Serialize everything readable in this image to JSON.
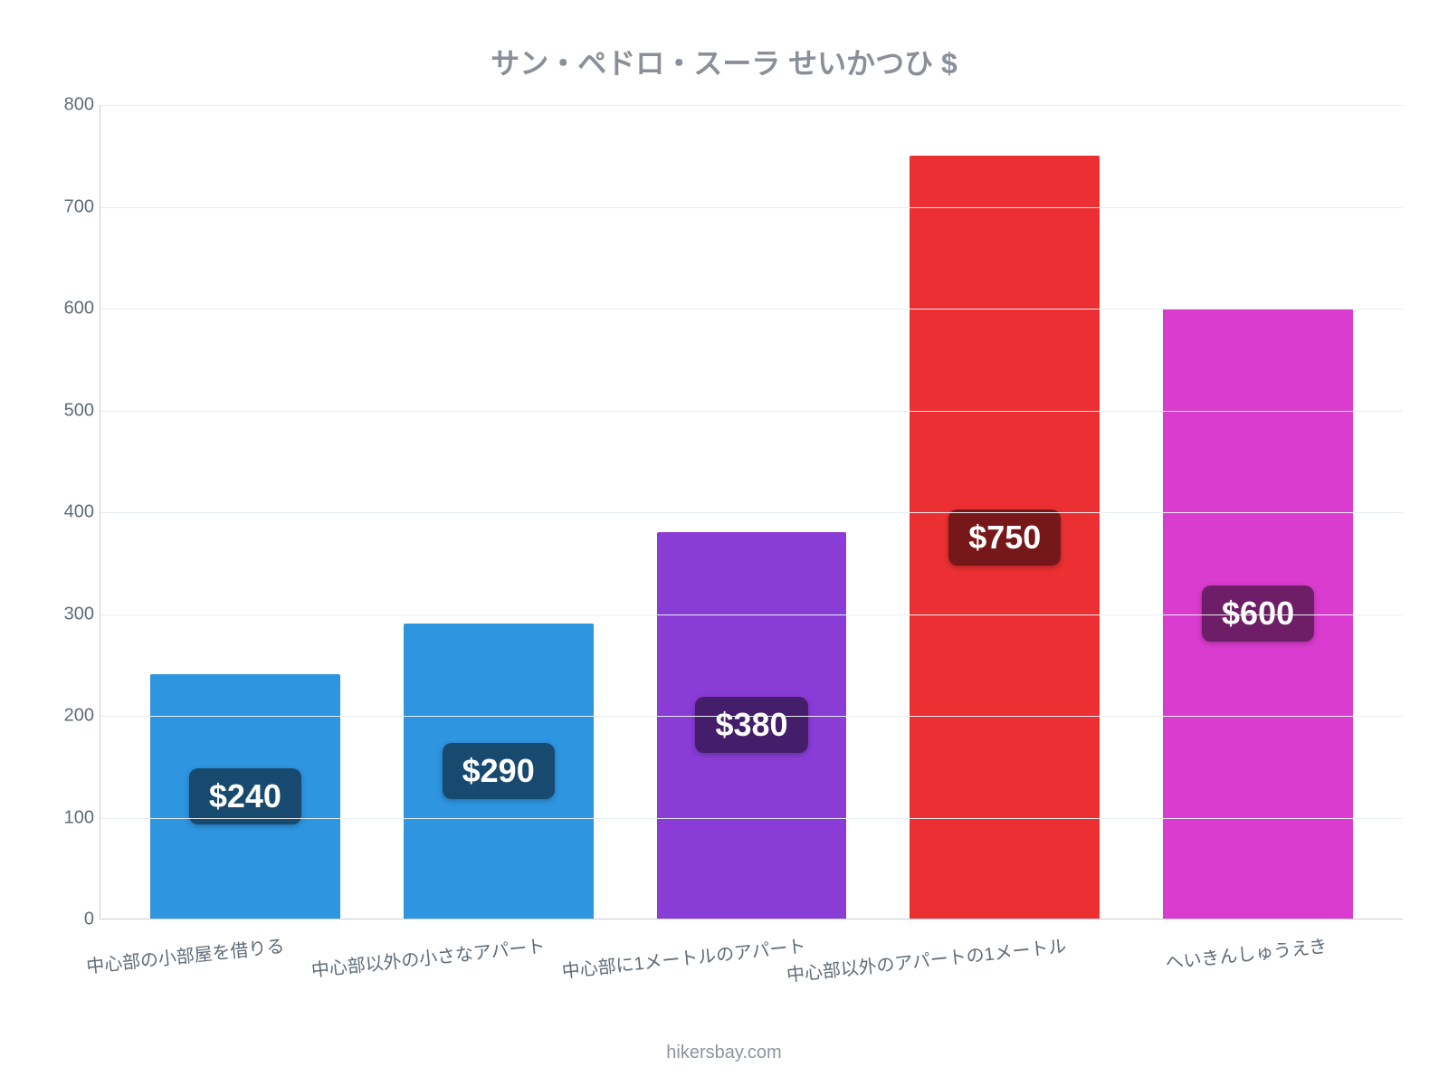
{
  "chart": {
    "type": "bar",
    "title": "サン・ペドロ・スーラ せいかつひ $",
    "title_color": "#8a8f99",
    "title_fontsize": 32,
    "background_color": "#ffffff",
    "axis_color": "#c9cdd4",
    "grid_color": "#e9ecef",
    "tick_color": "#5f6b7a",
    "tick_fontsize": 20,
    "y": {
      "min": 0,
      "max": 800,
      "step": 100
    },
    "x_label_rotation_deg": -6,
    "bar_width_ratio": 0.75,
    "bars": [
      {
        "category": "中心部の小部屋を借りる",
        "value": 240,
        "label": "$240",
        "bar_color": "#2e95e0",
        "badge_bg": "#184a70"
      },
      {
        "category": "中心部以外の小さなアパート",
        "value": 290,
        "label": "$290",
        "bar_color": "#2e95e0",
        "badge_bg": "#184a70"
      },
      {
        "category": "中心部に1メートルのアパート",
        "value": 380,
        "label": "$380",
        "bar_color": "#8a3cd6",
        "badge_bg": "#451e6b"
      },
      {
        "category": "中心部以外のアパートの1メートル",
        "value": 750,
        "label": "$750",
        "bar_color": "#ec2f32",
        "badge_bg": "#761819"
      },
      {
        "category": "へいきんしゅうえき",
        "value": 600,
        "label": "$600",
        "bar_color": "#d93cce",
        "badge_bg": "#6d1e67"
      }
    ],
    "badge_fontsize": 36,
    "badge_text_color": "#ffffff"
  },
  "attribution": "hikersbay.com"
}
